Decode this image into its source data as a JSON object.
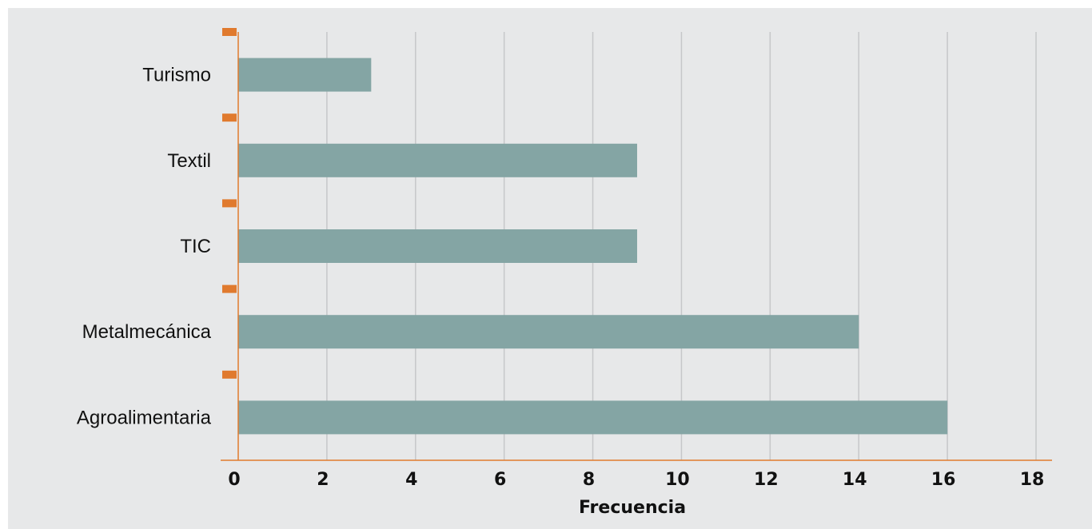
{
  "chart_data": {
    "type": "bar",
    "orientation": "horizontal",
    "categories": [
      "Turismo",
      "Textil",
      "TIC",
      "Metalmecánica",
      "Agroalimentaria"
    ],
    "values": [
      3,
      9,
      9,
      14,
      16
    ],
    "xlabel": "Frecuencia",
    "ylabel": "",
    "xlim": [
      0,
      18
    ],
    "x_ticks": [
      "0",
      "2",
      "4",
      "6",
      "8",
      "10",
      "12",
      "14",
      "16",
      "18"
    ],
    "grid": "vertical",
    "legend": "none",
    "colors": {
      "bar": "#84a5a4",
      "axis": "#e07a2e",
      "grid": "#c6c7c9",
      "background": "#e7e8e9"
    }
  }
}
